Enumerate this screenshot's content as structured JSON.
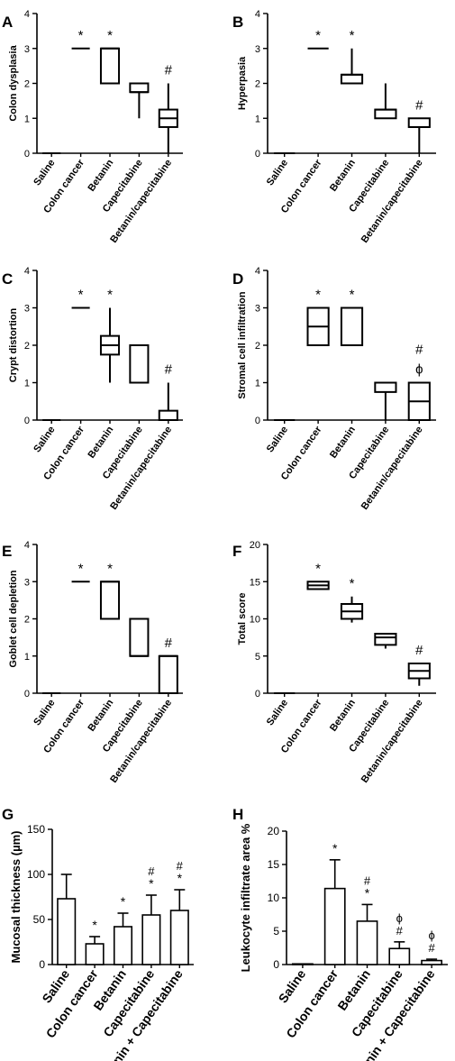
{
  "chart_data": [
    {
      "type": "box",
      "panel": "A",
      "ylabel": "Colon dysplasia",
      "ylim": [
        0,
        4
      ],
      "yticks": [
        0,
        1,
        2,
        3,
        4
      ],
      "categories": [
        "Saline",
        "Colon cancer",
        "Betanin",
        "Capecitabine",
        "Betanin/capecitabine"
      ],
      "boxes": [
        {
          "min": 0,
          "q1": 0,
          "median": 0,
          "q3": 0,
          "max": 0
        },
        {
          "min": 3,
          "q1": 3,
          "median": 3,
          "q3": 3,
          "max": 3
        },
        {
          "min": 2,
          "q1": 2,
          "median": 3,
          "q3": 3,
          "max": 3
        },
        {
          "min": 1,
          "q1": 1.75,
          "median": 1.75,
          "q3": 2,
          "max": 2
        },
        {
          "min": 0,
          "q1": 0.75,
          "median": 1,
          "q3": 1.25,
          "max": 2
        }
      ],
      "annotations": [
        "",
        "*",
        "*",
        "",
        "#"
      ]
    },
    {
      "type": "box",
      "panel": "B",
      "ylabel": "Hyperpasia",
      "ylim": [
        0,
        4
      ],
      "yticks": [
        0,
        1,
        2,
        3,
        4
      ],
      "categories": [
        "Saline",
        "Colon cancer",
        "Betanin",
        "Capecitabine",
        "Betanin/capecitabine"
      ],
      "boxes": [
        {
          "min": 0,
          "q1": 0,
          "median": 0,
          "q3": 0,
          "max": 0
        },
        {
          "min": 3,
          "q1": 3,
          "median": 3,
          "q3": 3,
          "max": 3
        },
        {
          "min": 2,
          "q1": 2,
          "median": 2.25,
          "q3": 2.25,
          "max": 3
        },
        {
          "min": 1,
          "q1": 1,
          "median": 1.25,
          "q3": 1.25,
          "max": 2
        },
        {
          "min": 0,
          "q1": 0.75,
          "median": 0.75,
          "q3": 1,
          "max": 1
        }
      ],
      "annotations": [
        "",
        "*",
        "*",
        "",
        "#"
      ]
    },
    {
      "type": "box",
      "panel": "C",
      "ylabel": "Crypt distortion",
      "ylim": [
        0,
        4
      ],
      "yticks": [
        0,
        1,
        2,
        3,
        4
      ],
      "categories": [
        "Saline",
        "Colon cancer",
        "Betanin",
        "Capecitabine",
        "Betanin/capecitabine"
      ],
      "boxes": [
        {
          "min": 0,
          "q1": 0,
          "median": 0,
          "q3": 0,
          "max": 0
        },
        {
          "min": 3,
          "q1": 3,
          "median": 3,
          "q3": 3,
          "max": 3
        },
        {
          "min": 1,
          "q1": 1.75,
          "median": 2,
          "q3": 2.25,
          "max": 3
        },
        {
          "min": 1,
          "q1": 1,
          "median": 1,
          "q3": 2,
          "max": 2
        },
        {
          "min": 0,
          "q1": 0,
          "median": 0,
          "q3": 0.25,
          "max": 1
        }
      ],
      "annotations": [
        "",
        "*",
        "*",
        "",
        "#"
      ]
    },
    {
      "type": "box",
      "panel": "D",
      "ylabel": "Stromal cell infiltration",
      "ylim": [
        0,
        4
      ],
      "yticks": [
        0,
        1,
        2,
        3,
        4
      ],
      "categories": [
        "Saline",
        "Colon cancer",
        "Betanin",
        "Capecitabine",
        "Betanin/capecitabine"
      ],
      "boxes": [
        {
          "min": 0,
          "q1": 0,
          "median": 0,
          "q3": 0,
          "max": 0
        },
        {
          "min": 2,
          "q1": 2,
          "median": 2.5,
          "q3": 3,
          "max": 3
        },
        {
          "min": 2,
          "q1": 2,
          "median": 2,
          "q3": 3,
          "max": 3
        },
        {
          "min": 0,
          "q1": 0.75,
          "median": 1,
          "q3": 1,
          "max": 1
        },
        {
          "min": 0,
          "q1": 0,
          "median": 0.5,
          "q3": 1,
          "max": 1
        }
      ],
      "annotations": [
        "",
        "*",
        "*",
        "",
        "#\nϕ"
      ]
    },
    {
      "type": "box",
      "panel": "E",
      "ylabel": "Goblet cell depletion",
      "ylim": [
        0,
        4
      ],
      "yticks": [
        0,
        1,
        2,
        3,
        4
      ],
      "categories": [
        "Saline",
        "Colon cancer",
        "Betanin",
        "Capecitabine",
        "Betanin/capecitabine"
      ],
      "boxes": [
        {
          "min": 0,
          "q1": 0,
          "median": 0,
          "q3": 0,
          "max": 0
        },
        {
          "min": 3,
          "q1": 3,
          "median": 3,
          "q3": 3,
          "max": 3
        },
        {
          "min": 2,
          "q1": 2,
          "median": 3,
          "q3": 3,
          "max": 3
        },
        {
          "min": 1,
          "q1": 1,
          "median": 1,
          "q3": 2,
          "max": 2
        },
        {
          "min": 0,
          "q1": 0,
          "median": 1,
          "q3": 1,
          "max": 1
        }
      ],
      "annotations": [
        "",
        "*",
        "*",
        "",
        "#"
      ]
    },
    {
      "type": "box",
      "panel": "F",
      "ylabel": "Total score",
      "ylim": [
        0,
        20
      ],
      "yticks": [
        0,
        5,
        10,
        15,
        20
      ],
      "categories": [
        "Saline",
        "Colon cancer",
        "Betanin",
        "Capecitabine",
        "Betanin/capecitabine"
      ],
      "boxes": [
        {
          "min": 0,
          "q1": 0,
          "median": 0,
          "q3": 0,
          "max": 0
        },
        {
          "min": 14,
          "q1": 14,
          "median": 14.5,
          "q3": 15,
          "max": 15
        },
        {
          "min": 9.5,
          "q1": 10,
          "median": 11,
          "q3": 12,
          "max": 13
        },
        {
          "min": 6,
          "q1": 6.5,
          "median": 7.5,
          "q3": 8,
          "max": 8
        },
        {
          "min": 1,
          "q1": 2,
          "median": 3,
          "q3": 4,
          "max": 4
        }
      ],
      "annotations": [
        "",
        "*",
        "*",
        "",
        "#"
      ]
    },
    {
      "type": "bar",
      "panel": "G",
      "ylabel": "Mucosal thickness (µm)",
      "ylim": [
        0,
        150
      ],
      "yticks": [
        0,
        50,
        100,
        150
      ],
      "categories": [
        "Saline",
        "Colon cancer",
        "Betanin",
        "Capecitabine",
        "Betanin + Capecitabine"
      ],
      "values": [
        73,
        23,
        42,
        55,
        60
      ],
      "errors": [
        27,
        8,
        15,
        22,
        23
      ],
      "annotations": [
        "",
        "*",
        "*",
        "#\n*",
        "#\n*"
      ]
    },
    {
      "type": "bar",
      "panel": "H",
      "ylabel": "Leukocyte infiltrate area %",
      "ylim": [
        0,
        20
      ],
      "yticks": [
        0,
        5,
        10,
        15,
        20
      ],
      "categories": [
        "Saline",
        "Colon cancer",
        "Betanin",
        "Capecitabine",
        "Betanin + Capecitabine"
      ],
      "values": [
        0.1,
        11.4,
        6.5,
        2.4,
        0.6
      ],
      "errors": [
        0,
        4.3,
        2.5,
        1.0,
        0.2
      ],
      "annotations": [
        "",
        "*",
        "#\n*",
        "ϕ\n#",
        "ϕ\n#"
      ]
    }
  ]
}
